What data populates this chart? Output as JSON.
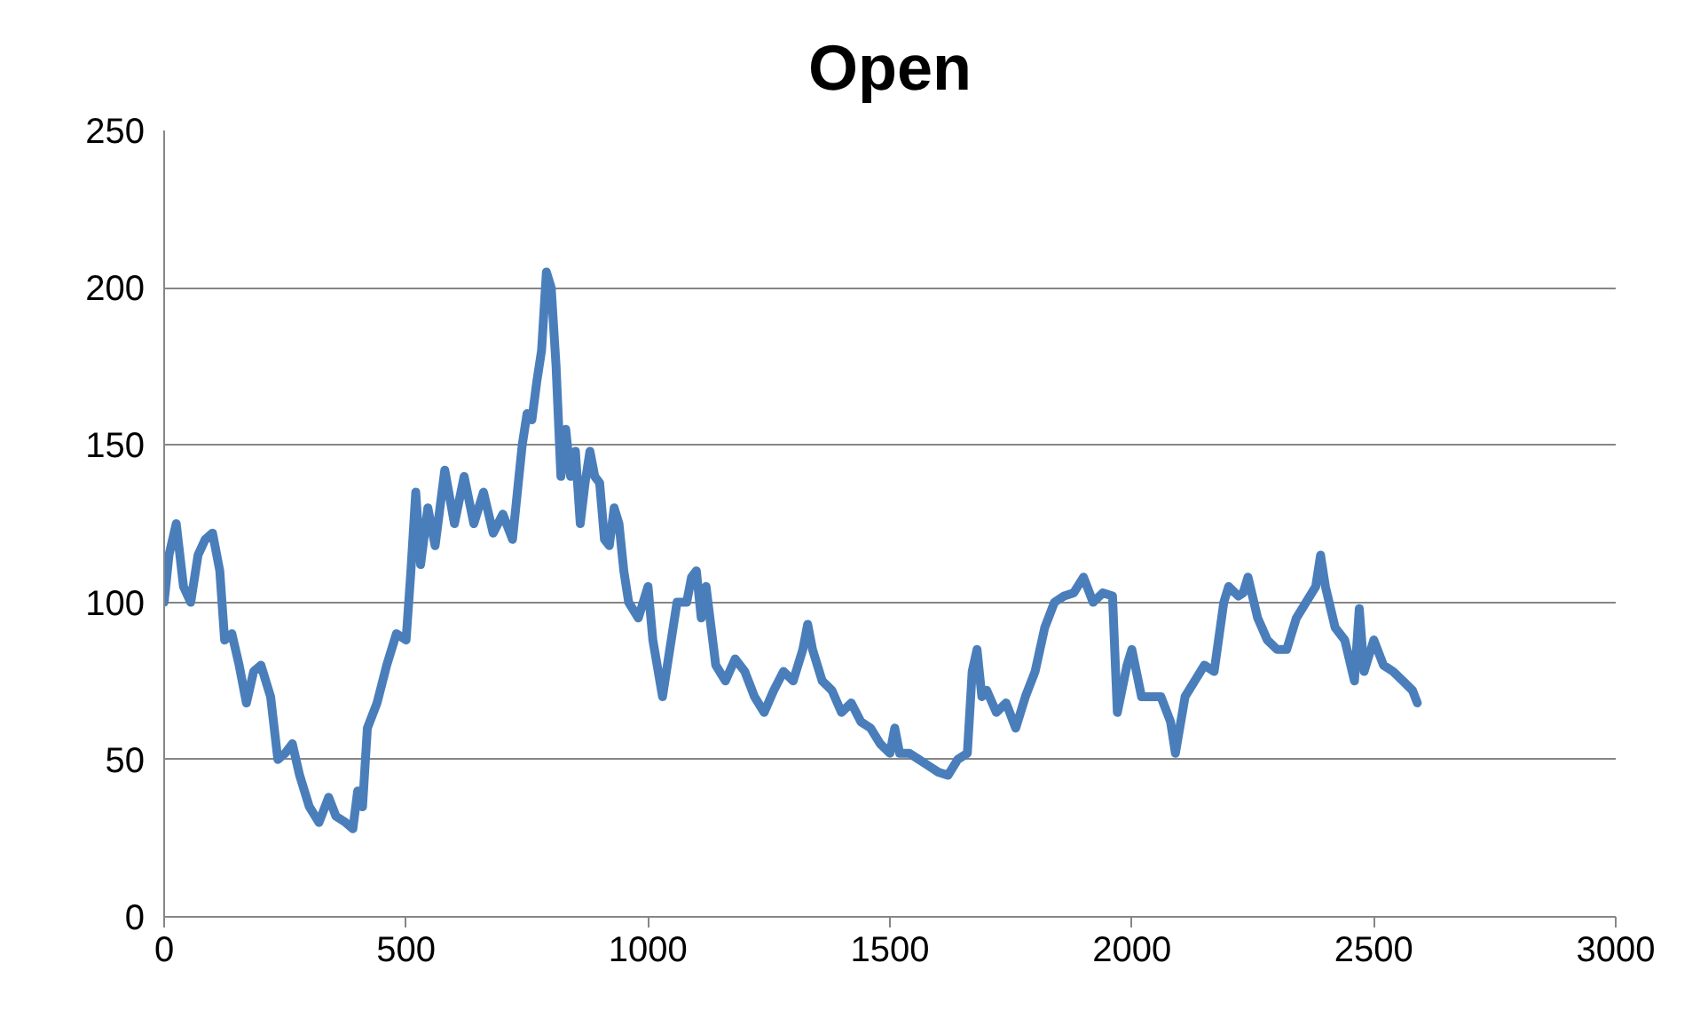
{
  "chart_data": {
    "type": "line",
    "title": "Open",
    "xlim": [
      0,
      3000
    ],
    "xticks": [
      0,
      500,
      1000,
      1500,
      2000,
      2500,
      3000
    ],
    "ylim": [
      0,
      250
    ],
    "yticks": [
      0,
      50,
      100,
      150,
      200,
      250
    ],
    "grid": "y",
    "marker": "none",
    "line_style": "solid",
    "series": [
      {
        "color": "#4a7ebb",
        "x": [
          0,
          10,
          25,
          40,
          55,
          70,
          85,
          100,
          115,
          125,
          140,
          155,
          170,
          185,
          200,
          220,
          235,
          250,
          265,
          280,
          300,
          320,
          340,
          355,
          375,
          390,
          400,
          410,
          420,
          440,
          460,
          480,
          500,
          510,
          520,
          530,
          545,
          560,
          580,
          600,
          620,
          640,
          660,
          680,
          700,
          720,
          730,
          740,
          750,
          760,
          770,
          780,
          790,
          800,
          810,
          820,
          830,
          840,
          850,
          860,
          870,
          880,
          890,
          900,
          910,
          920,
          930,
          940,
          950,
          960,
          980,
          1000,
          1010,
          1030,
          1040,
          1060,
          1080,
          1090,
          1100,
          1110,
          1120,
          1140,
          1160,
          1180,
          1200,
          1220,
          1240,
          1260,
          1280,
          1300,
          1320,
          1330,
          1340,
          1360,
          1380,
          1400,
          1420,
          1440,
          1460,
          1480,
          1500,
          1510,
          1520,
          1540,
          1560,
          1580,
          1600,
          1620,
          1640,
          1660,
          1670,
          1680,
          1690,
          1700,
          1720,
          1740,
          1760,
          1780,
          1800,
          1820,
          1840,
          1860,
          1880,
          1900,
          1920,
          1940,
          1960,
          1970,
          1990,
          2000,
          2020,
          2040,
          2060,
          2080,
          2090,
          2110,
          2130,
          2150,
          2170,
          2190,
          2200,
          2220,
          2230,
          2240,
          2260,
          2280,
          2300,
          2320,
          2340,
          2360,
          2380,
          2390,
          2400,
          2420,
          2440,
          2460,
          2470,
          2480,
          2500,
          2520,
          2540,
          2560,
          2580,
          2590
        ],
        "values": [
          100,
          115,
          125,
          105,
          100,
          115,
          120,
          122,
          110,
          88,
          90,
          80,
          68,
          78,
          80,
          70,
          50,
          52,
          55,
          45,
          35,
          30,
          38,
          32,
          30,
          28,
          40,
          35,
          60,
          68,
          80,
          90,
          88,
          110,
          135,
          112,
          130,
          118,
          142,
          125,
          140,
          125,
          135,
          122,
          128,
          120,
          135,
          150,
          160,
          158,
          170,
          180,
          205,
          200,
          175,
          140,
          155,
          140,
          148,
          125,
          138,
          148,
          140,
          138,
          120,
          118,
          130,
          125,
          110,
          100,
          95,
          105,
          88,
          70,
          80,
          100,
          100,
          108,
          110,
          95,
          105,
          80,
          75,
          82,
          78,
          70,
          65,
          72,
          78,
          75,
          85,
          93,
          85,
          75,
          72,
          65,
          68,
          62,
          60,
          55,
          52,
          60,
          52,
          52,
          50,
          48,
          46,
          45,
          50,
          52,
          78,
          85,
          70,
          72,
          65,
          68,
          60,
          70,
          78,
          92,
          100,
          102,
          103,
          108,
          100,
          103,
          102,
          65,
          80,
          85,
          70,
          70,
          70,
          62,
          52,
          70,
          75,
          80,
          78,
          100,
          105,
          102,
          103,
          108,
          95,
          88,
          85,
          85,
          95,
          100,
          105,
          115,
          105,
          92,
          88,
          75,
          98,
          78,
          88,
          80,
          78,
          75,
          72,
          68
        ]
      }
    ]
  }
}
